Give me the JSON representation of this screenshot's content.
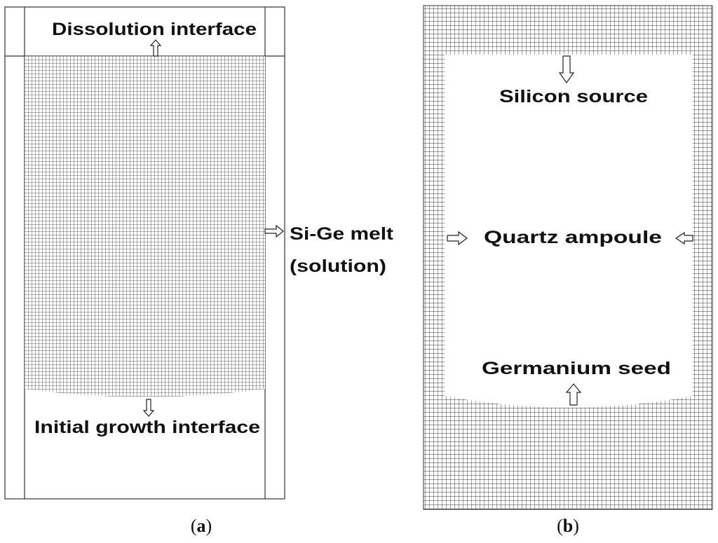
{
  "panels": [
    {
      "labels": [
        "Dissolution interface",
        "Initial growth interface",
        "Si-Ge melt",
        "(solution)"
      ],
      "caption": {
        "open": "(",
        "letter": "a",
        "close": ")"
      }
    },
    {
      "labels": [
        "Silicon source",
        "Quartz ampoule",
        "Germanium seed"
      ],
      "caption": {
        "open": "(",
        "letter": "b",
        "close": ")"
      }
    }
  ]
}
